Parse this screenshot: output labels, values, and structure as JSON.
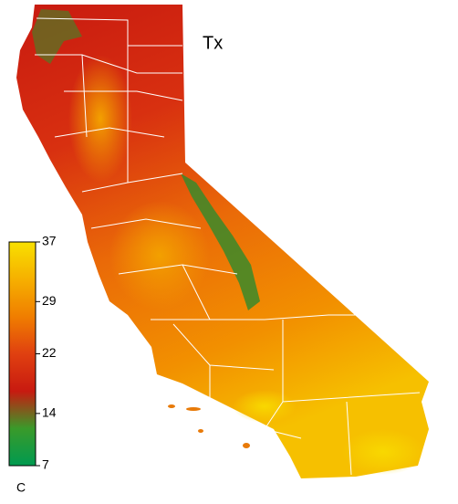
{
  "title": "Tx",
  "colorbar": {
    "label": "C",
    "range": [
      7,
      37
    ],
    "ticks": [
      7,
      14,
      22,
      29,
      37
    ],
    "colors": [
      "#009a50",
      "#3a9a2a",
      "#c81a10",
      "#e04010",
      "#f07e00",
      "#f6b000",
      "#f8e000"
    ]
  }
}
